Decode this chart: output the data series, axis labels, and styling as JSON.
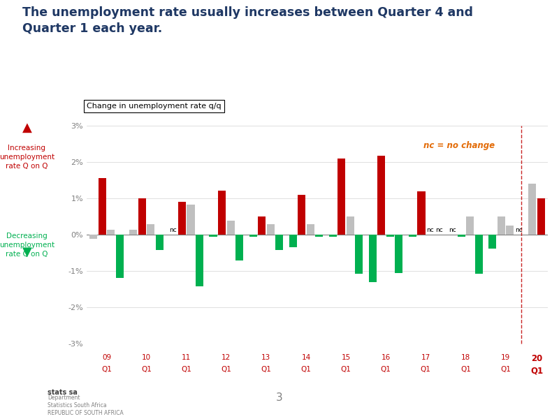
{
  "title": "The unemployment rate usually increases between Quarter 4 and\nQuarter 1 each year.",
  "subtitle": "Change in unemployment rate q/q",
  "nc_label": "nc = no change",
  "title_color": "#1f3864",
  "red_color": "#c00000",
  "green_color": "#00b050",
  "gray_color": "#bfbfbf",
  "orange_color": "#e36c09",
  "year_labels": [
    "09",
    "10",
    "11",
    "12",
    "13",
    "14",
    "15",
    "16",
    "17",
    "18",
    "19",
    "20"
  ],
  "groups": [
    {
      "year": "09",
      "bars": [
        {
          "val": -0.12,
          "color": "gray"
        },
        {
          "val": 1.55,
          "color": "red"
        },
        {
          "val": 0.13,
          "color": "gray"
        },
        {
          "val": -1.2,
          "color": "green"
        }
      ]
    },
    {
      "year": "10",
      "bars": [
        {
          "val": 0.13,
          "color": "gray"
        },
        {
          "val": 1.0,
          "color": "red"
        },
        {
          "val": 0.28,
          "color": "gray"
        },
        {
          "val": -0.42,
          "color": "green"
        }
      ]
    },
    {
      "year": "11",
      "bars": [
        {
          "val": 0.0,
          "color": "nc"
        },
        {
          "val": 0.9,
          "color": "red"
        },
        {
          "val": 0.82,
          "color": "gray"
        },
        {
          "val": -1.42,
          "color": "green"
        }
      ]
    },
    {
      "year": "12",
      "bars": [
        {
          "val": -0.05,
          "color": "green"
        },
        {
          "val": 1.22,
          "color": "red"
        },
        {
          "val": 0.38,
          "color": "gray"
        },
        {
          "val": -0.72,
          "color": "green"
        }
      ]
    },
    {
      "year": "13",
      "bars": [
        {
          "val": -0.05,
          "color": "green"
        },
        {
          "val": 0.5,
          "color": "red"
        },
        {
          "val": 0.28,
          "color": "gray"
        },
        {
          "val": -0.42,
          "color": "green"
        }
      ]
    },
    {
      "year": "14",
      "bars": [
        {
          "val": -0.35,
          "color": "green"
        },
        {
          "val": 1.1,
          "color": "red"
        },
        {
          "val": 0.28,
          "color": "gray"
        },
        {
          "val": -0.05,
          "color": "green"
        }
      ]
    },
    {
      "year": "15",
      "bars": [
        {
          "val": -0.05,
          "color": "green"
        },
        {
          "val": 2.1,
          "color": "red"
        },
        {
          "val": 0.5,
          "color": "gray"
        },
        {
          "val": -1.08,
          "color": "green"
        }
      ]
    },
    {
      "year": "16",
      "bars": [
        {
          "val": -1.3,
          "color": "green"
        },
        {
          "val": 2.18,
          "color": "red"
        },
        {
          "val": -0.05,
          "color": "green"
        },
        {
          "val": -1.05,
          "color": "green"
        }
      ]
    },
    {
      "year": "17",
      "bars": [
        {
          "val": -0.05,
          "color": "green"
        },
        {
          "val": 1.2,
          "color": "red"
        },
        {
          "val": 0.0,
          "color": "nc"
        },
        {
          "val": 0.0,
          "color": "nc"
        }
      ]
    },
    {
      "year": "18",
      "bars": [
        {
          "val": 0.0,
          "color": "nc"
        },
        {
          "val": -0.05,
          "color": "green"
        },
        {
          "val": 0.5,
          "color": "gray"
        },
        {
          "val": -1.08,
          "color": "green"
        }
      ]
    },
    {
      "year": "19",
      "bars": [
        {
          "val": -0.38,
          "color": "green"
        },
        {
          "val": 0.5,
          "color": "gray"
        },
        {
          "val": 0.25,
          "color": "gray"
        },
        {
          "val": 0.0,
          "color": "nc"
        }
      ]
    },
    {
      "year": "20",
      "bars": [
        {
          "val": 1.4,
          "color": "gray"
        },
        {
          "val": 1.0,
          "color": "red"
        }
      ]
    }
  ]
}
